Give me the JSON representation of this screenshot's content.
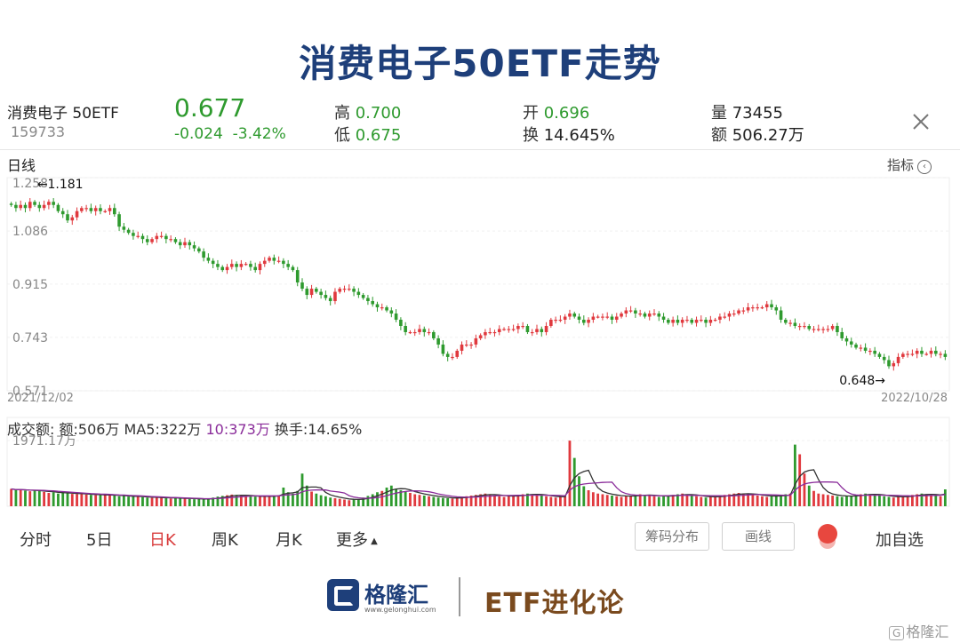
{
  "header": {
    "title": "消费电子50ETF走势"
  },
  "quote": {
    "name": "消费电子 50ETF",
    "code": "159733",
    "price": "0.677",
    "change": "-0.024",
    "change_pct": "-3.42%",
    "high_label": "高",
    "high": "0.700",
    "low_label": "低",
    "low": "0.675",
    "open_label": "开",
    "open": "0.696",
    "turnover_label": "换",
    "turnover": "14.645%",
    "volume_label": "量",
    "volume": "73455",
    "amount_label": "额",
    "amount": "506.27万"
  },
  "chart_panel": {
    "period_label": "日线",
    "indicator_label": "指标",
    "volume_header": {
      "title": "成交额:",
      "amount": "额:506万",
      "ma5": "MA5:322万",
      "ma10": "10:373万",
      "turnover": "换手:14.65%"
    }
  },
  "tabs": [
    "分时",
    "5日",
    "日K",
    "周K",
    "月K",
    "更多"
  ],
  "active_tab": "日K",
  "buttons": {
    "chip_dist": "筹码分布",
    "draw": "画线",
    "add_watch": "加自选"
  },
  "footer": {
    "logo_text": "格隆汇",
    "logo_url": "www.gelonghui.com",
    "brand": "ETF进化论",
    "watermark": "格隆汇"
  },
  "colors": {
    "up": "#e0393e",
    "down": "#2e9a2e",
    "ma5": "#333333",
    "ma10": "#8a2c9a",
    "title": "#1e3f7a"
  },
  "chart_data": [
    {
      "type": "candlestick",
      "title": "",
      "x_start": "2021/12/02",
      "x_end": "2022/10/28",
      "y_ticks": [
        "1.258",
        "1.086",
        "0.915",
        "0.743",
        "0.571"
      ],
      "ylim": [
        0.571,
        1.258
      ],
      "annotations": [
        {
          "text": "←1.181",
          "value": 1.181,
          "kind": "max"
        },
        {
          "text": "0.648→",
          "value": 0.648,
          "kind": "min"
        }
      ],
      "close_path": [
        1.17,
        1.16,
        1.17,
        1.16,
        1.18,
        1.17,
        1.16,
        1.17,
        1.18,
        1.17,
        1.15,
        1.14,
        1.12,
        1.13,
        1.15,
        1.16,
        1.16,
        1.15,
        1.16,
        1.15,
        1.15,
        1.16,
        1.14,
        1.1,
        1.09,
        1.08,
        1.07,
        1.07,
        1.06,
        1.05,
        1.06,
        1.07,
        1.07,
        1.06,
        1.06,
        1.05,
        1.04,
        1.05,
        1.04,
        1.03,
        1.02,
        1.0,
        0.99,
        0.98,
        0.97,
        0.96,
        0.97,
        0.98,
        0.97,
        0.98,
        0.98,
        0.97,
        0.96,
        0.98,
        0.99,
        1.0,
        0.99,
        0.99,
        0.98,
        0.97,
        0.96,
        0.92,
        0.9,
        0.88,
        0.9,
        0.89,
        0.88,
        0.87,
        0.86,
        0.89,
        0.9,
        0.9,
        0.9,
        0.89,
        0.88,
        0.87,
        0.86,
        0.85,
        0.84,
        0.84,
        0.83,
        0.82,
        0.8,
        0.78,
        0.76,
        0.76,
        0.76,
        0.77,
        0.76,
        0.76,
        0.74,
        0.72,
        0.69,
        0.68,
        0.68,
        0.7,
        0.72,
        0.72,
        0.72,
        0.74,
        0.75,
        0.76,
        0.76,
        0.76,
        0.77,
        0.77,
        0.77,
        0.77,
        0.78,
        0.78,
        0.76,
        0.76,
        0.77,
        0.76,
        0.78,
        0.8,
        0.8,
        0.8,
        0.81,
        0.82,
        0.81,
        0.8,
        0.79,
        0.8,
        0.81,
        0.81,
        0.81,
        0.81,
        0.8,
        0.81,
        0.82,
        0.83,
        0.83,
        0.82,
        0.82,
        0.81,
        0.82,
        0.82,
        0.81,
        0.8,
        0.79,
        0.8,
        0.79,
        0.8,
        0.8,
        0.79,
        0.8,
        0.8,
        0.79,
        0.8,
        0.8,
        0.81,
        0.81,
        0.82,
        0.82,
        0.83,
        0.83,
        0.84,
        0.84,
        0.84,
        0.84,
        0.85,
        0.84,
        0.83,
        0.8,
        0.79,
        0.79,
        0.78,
        0.78,
        0.78,
        0.77,
        0.77,
        0.77,
        0.77,
        0.77,
        0.78,
        0.76,
        0.74,
        0.73,
        0.72,
        0.71,
        0.71,
        0.7,
        0.7,
        0.69,
        0.68,
        0.67,
        0.65,
        0.66,
        0.68,
        0.69,
        0.69,
        0.69,
        0.7,
        0.69,
        0.69,
        0.7,
        0.69,
        0.69,
        0.68
      ]
    },
    {
      "type": "bar",
      "title": "成交额",
      "y_tick": "1971.17万",
      "series_names": [
        "MA5",
        "MA10"
      ],
      "amount_path": [
        520,
        480,
        500,
        470,
        450,
        480,
        460,
        430,
        400,
        420,
        380,
        410,
        390,
        370,
        360,
        380,
        350,
        340,
        330,
        350,
        340,
        330,
        320,
        300,
        310,
        290,
        280,
        300,
        270,
        260,
        250,
        270,
        260,
        240,
        230,
        250,
        240,
        230,
        220,
        210,
        220,
        200,
        230,
        260,
        290,
        310,
        330,
        350,
        340,
        320,
        300,
        310,
        290,
        280,
        300,
        310,
        320,
        330,
        560,
        420,
        380,
        460,
        980,
        620,
        440,
        380,
        330,
        300,
        260,
        240,
        220,
        200,
        180,
        200,
        220,
        260,
        310,
        360,
        420,
        460,
        560,
        620,
        520,
        480,
        440,
        400,
        360,
        340,
        320,
        300,
        280,
        260,
        250,
        240,
        230,
        260,
        280,
        300,
        320,
        340,
        360,
        380,
        340,
        320,
        300,
        280,
        300,
        320,
        340,
        360,
        380,
        360,
        340,
        320,
        300,
        280,
        260,
        280,
        300,
        1970,
        1450,
        900,
        600,
        480,
        420,
        380,
        360,
        340,
        320,
        300,
        280,
        300,
        320,
        340,
        360,
        340,
        320,
        300,
        280,
        300,
        320,
        340,
        360,
        380,
        340,
        320,
        300,
        280,
        260,
        280,
        300,
        320,
        340,
        360,
        380,
        400,
        380,
        360,
        340,
        320,
        300,
        280,
        300,
        320,
        340,
        360,
        380,
        1850,
        1560,
        980,
        620,
        460,
        380,
        360,
        340,
        320,
        300,
        280,
        300,
        320,
        340,
        360,
        380,
        360,
        340,
        320,
        300,
        280,
        260,
        280,
        300,
        320,
        340,
        360,
        380,
        360,
        340,
        320,
        300,
        506
      ]
    }
  ]
}
